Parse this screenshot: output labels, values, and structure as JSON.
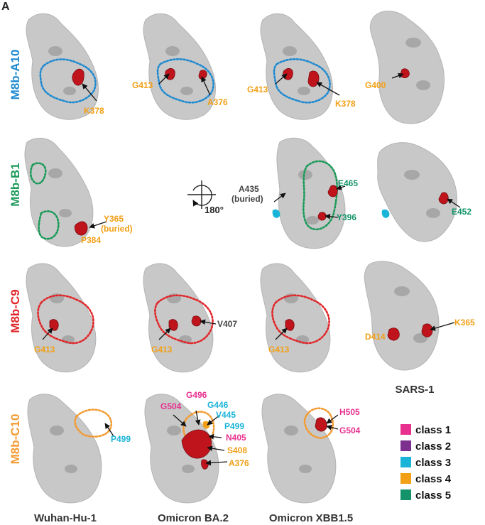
{
  "panel_letter": "A",
  "colors": {
    "class_1": "#e8318f",
    "class_2": "#7c2f8e",
    "class_3": "#1ab4d8",
    "class_4": "#f2a016",
    "class_5": "#14936a",
    "neutral": "#444444",
    "mutation": "#c0141c",
    "M8b-A10": "#1f8ad0",
    "M8b-B1": "#1c9a5a",
    "M8b-C9": "#e1272a",
    "M8b-C10": "#f39a30"
  },
  "rows": [
    {
      "label": "M8b-A10"
    },
    {
      "label": "M8b-B1"
    },
    {
      "label": "M8b-C9"
    },
    {
      "label": "M8b-C10"
    }
  ],
  "columns": [
    "Wuhan-Hu-1",
    "Omicron BA.2",
    "Omicron XBB1.5",
    "SARS-1"
  ],
  "rotation_label": "180°",
  "residues": {
    "a_wuhan": [
      "K378"
    ],
    "a_ba2": [
      "G413",
      "A376"
    ],
    "a_xbb": [
      "G413",
      "K378"
    ],
    "a_sars": [
      "G400"
    ],
    "b_wuhan": [
      "Y365",
      "(buried)",
      "P384"
    ],
    "b_xbb": [
      "A435",
      "(buried)",
      "E465",
      "Y396"
    ],
    "b_sars": [
      "E452"
    ],
    "c_wuhan": [
      "G413"
    ],
    "c_ba2": [
      "G413",
      "V407"
    ],
    "c_xbb": [
      "G413"
    ],
    "c_sars": [
      "D414",
      "K365"
    ],
    "d_wuhan": [
      "P499"
    ],
    "d_ba2": [
      "G504",
      "G496",
      "G446",
      "V445",
      "P499",
      "N405",
      "S408",
      "A376"
    ],
    "d_xbb": [
      "H505",
      "G504"
    ]
  },
  "legend": [
    {
      "label": "class 1",
      "color": "#e8318f"
    },
    {
      "label": "class 2",
      "color": "#7c2f8e"
    },
    {
      "label": "class 3",
      "color": "#1ab4d8"
    },
    {
      "label": "class 4",
      "color": "#f2a016"
    },
    {
      "label": "class 5",
      "color": "#14936a"
    }
  ]
}
